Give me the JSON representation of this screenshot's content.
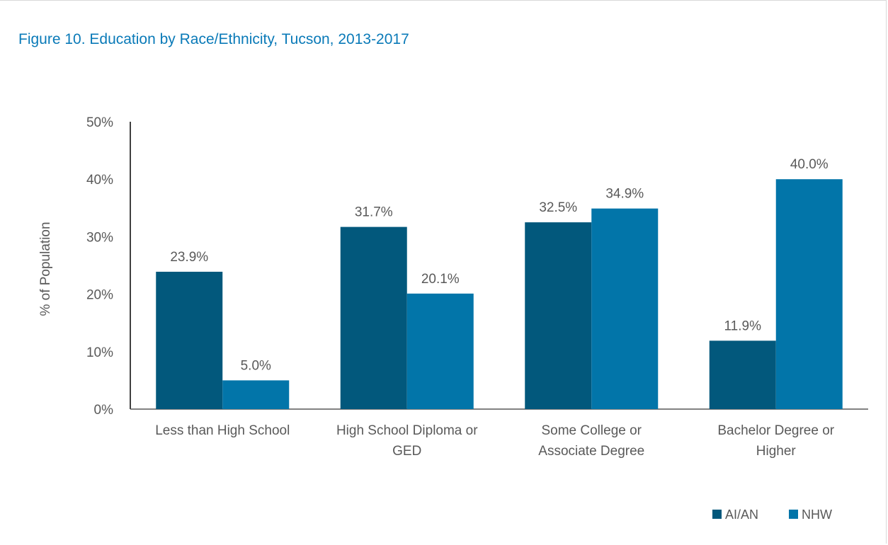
{
  "chart_data": {
    "type": "bar",
    "title": "Figure 10. Education by Race/Ethnicity, Tucson, 2013-2017",
    "ylabel": "% of Population",
    "xlabel": "",
    "ylim": [
      0,
      50
    ],
    "yticks": [
      "0%",
      "10%",
      "20%",
      "30%",
      "40%",
      "50%"
    ],
    "categories": [
      [
        "Less than High School"
      ],
      [
        "High School Diploma or",
        "GED"
      ],
      [
        "Some College or",
        "Associate Degree"
      ],
      [
        "Bachelor Degree or",
        "Higher"
      ]
    ],
    "series": [
      {
        "name": "AI/AN",
        "color": "#02587c",
        "values": [
          23.9,
          31.7,
          32.5,
          11.9
        ],
        "labels": [
          "23.9%",
          "31.7%",
          "32.5%",
          "11.9%"
        ]
      },
      {
        "name": "NHW",
        "color": "#0275a9",
        "values": [
          5.0,
          20.1,
          34.9,
          40.0
        ],
        "labels": [
          "5.0%",
          "20.1%",
          "34.9%",
          "40.0%"
        ]
      }
    ],
    "legend": "bottom-right",
    "grid": false,
    "title_color": "#0a7ab8"
  }
}
